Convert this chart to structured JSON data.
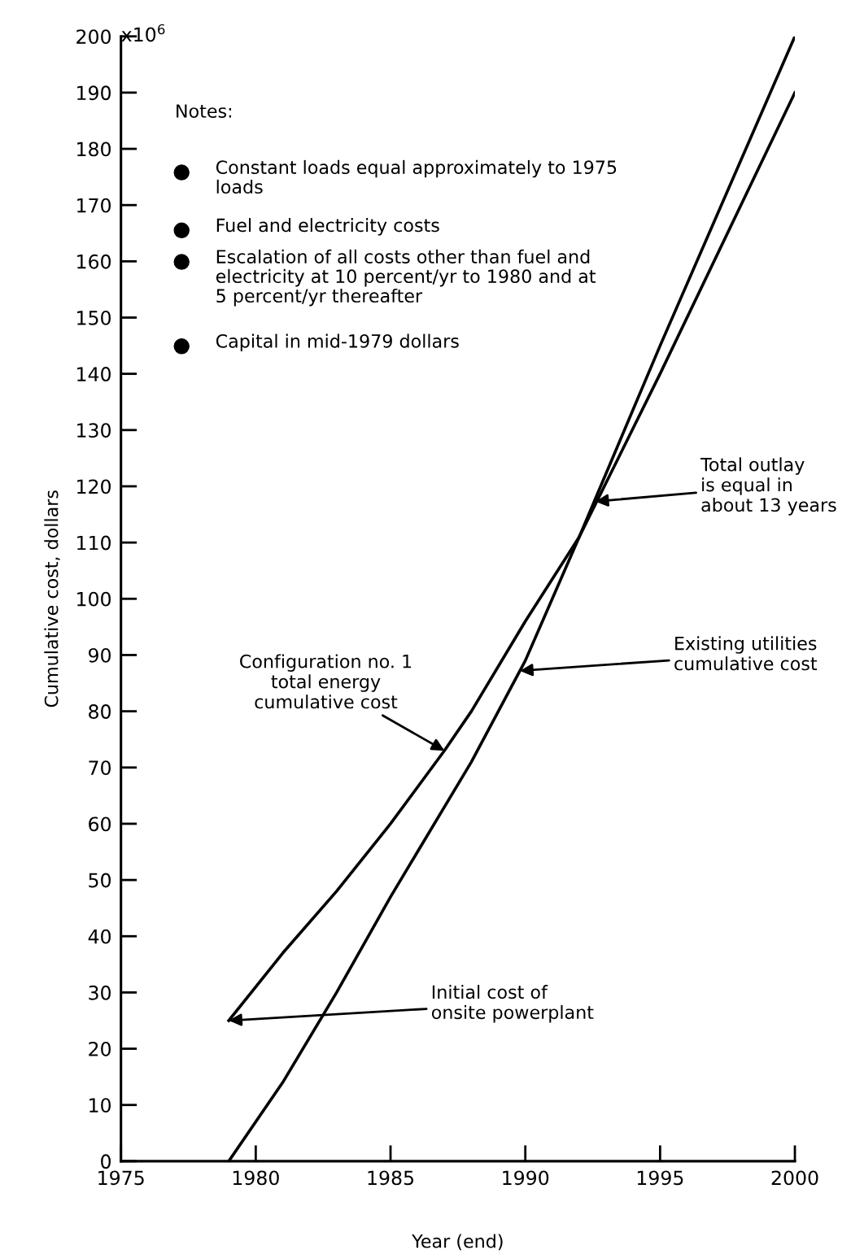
{
  "chart_data": {
    "type": "line",
    "xlabel": "Year (end)",
    "ylabel": "Cumulative cost, dollars",
    "x": [
      1979,
      1981,
      1983,
      1985,
      1987,
      1988,
      1990,
      1992,
      1995,
      2000
    ],
    "series": [
      {
        "color": "#000000",
        "values": [
          25,
          37,
          48,
          60,
          73,
          80,
          96,
          111,
          140,
          190
        ]
      },
      {
        "color": "#000000",
        "x": [
          1979,
          1981,
          1983,
          1985,
          1988,
          1990,
          1992,
          1995,
          2000
        ],
        "values": [
          0,
          14,
          30,
          47,
          71,
          89,
          111,
          145,
          200
        ]
      }
    ],
    "xlim": [
      1975,
      2000
    ],
    "ylim": [
      0,
      200
    ],
    "xticks": [
      1975,
      1980,
      1985,
      1990,
      1995,
      2000
    ],
    "yticks": [
      0,
      10,
      20,
      30,
      40,
      50,
      60,
      70,
      80,
      90,
      100,
      110,
      120,
      130,
      140,
      150,
      160,
      170,
      180,
      190,
      200
    ],
    "grid": false,
    "legend": false,
    "marker": "none",
    "line_style": "solid",
    "annotations": [
      "x10$^{6}$",
      "Notes:",
      "Constant loads equal approximately to 1975\nloads",
      "Fuel and electricity costs",
      "Escalation of all costs other than fuel and\nelectricity at 10 percent/yr to 1980 and at\n5 percent/yr thereafter",
      "Capital in mid-1979 dollars",
      {
        "text": "Total outlay\nis equal in\nabout 13 years",
        "x": 1992.6,
        "y": 117.3
      },
      {
        "text": "Existing utilities\ncumulative cost",
        "x": 1989.8,
        "y": 87.2
      },
      {
        "text": "Configuration no. 1\ntotal energy\ncumulative cost",
        "x": 1987,
        "y": 73
      },
      {
        "text": "Initial cost of\nonsite powerplant",
        "x": 1979,
        "y": 25
      }
    ]
  }
}
